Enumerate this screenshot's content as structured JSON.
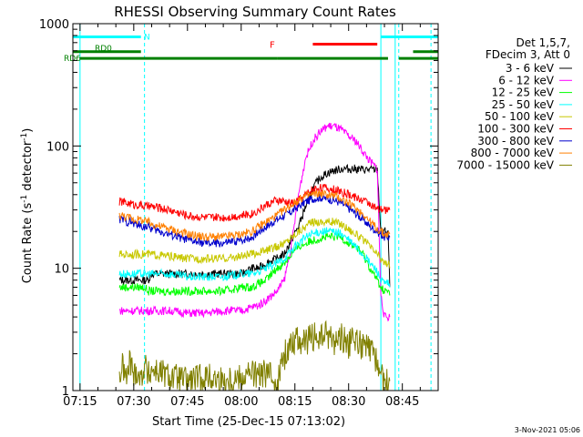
{
  "chart_data": {
    "type": "line",
    "title": "RHESSI Observing Summary Count Rates",
    "xlabel": "Start Time (25-Dec-15 07:13:02)",
    "ylabel_main": "Count Rate (s",
    "ylabel_sup1": "-1",
    "ylabel_mid": " detector",
    "ylabel_sup2": "-1",
    "ylabel_end": ")",
    "yscale": "log",
    "xlim_minutes": [
      -2,
      100
    ],
    "ylim": [
      1,
      1000
    ],
    "xtick_labels": [
      "07:15",
      "07:30",
      "07:45",
      "08:00",
      "08:15",
      "08:30",
      "08:45"
    ],
    "xtick_minutes": [
      0,
      15,
      30,
      45,
      60,
      75,
      90
    ],
    "ytick_labels": [
      "1",
      "10",
      "100",
      "1000"
    ],
    "ytick_values": [
      1,
      10,
      100,
      1000
    ],
    "footer": "3-Nov-2021 05:06",
    "legend_header": [
      "Det 1,5,7,",
      "FDecim 3, Att 0"
    ],
    "flag_labels": {
      "N": "N",
      "RD0": "RD0",
      "RD6": "RD6",
      "F": "F"
    },
    "flags": [
      {
        "name": "N",
        "color": "#00ffff",
        "y": 780,
        "segments": [
          [
            -2,
            17
          ],
          [
            84,
            100
          ]
        ]
      },
      {
        "name": "RD0",
        "color": "#008000",
        "y": 590,
        "segments": [
          [
            -2,
            17
          ],
          [
            93,
            100
          ]
        ]
      },
      {
        "name": "RD6",
        "color": "#008000",
        "y": 520,
        "segments": [
          [
            0,
            20
          ],
          [
            20,
            55
          ],
          [
            55,
            86
          ],
          [
            89,
            100
          ]
        ]
      },
      {
        "name": "F",
        "color": "#ff0000",
        "y": 680,
        "segments": [
          [
            65,
            83
          ]
        ]
      }
    ],
    "vlines_solid_minutes": [
      0,
      84,
      88
    ],
    "vlines_dashed_minutes": [
      18,
      89,
      98
    ],
    "x": [
      11,
      12,
      13,
      14,
      15,
      16,
      17,
      18,
      19,
      20,
      25,
      30,
      35,
      40,
      45,
      48,
      50,
      52,
      55,
      57,
      59,
      61,
      63,
      65,
      67,
      69,
      71,
      73,
      75,
      77,
      79,
      81,
      83,
      84,
      85,
      86,
      86.5
    ],
    "series": [
      {
        "name": "3 - 6 keV",
        "color": "#000000",
        "values": [
          8,
          8,
          8,
          8,
          8,
          8,
          8,
          8,
          8,
          9,
          9,
          9,
          9,
          9,
          9,
          10,
          10,
          11,
          12,
          13,
          17,
          22,
          32,
          45,
          55,
          60,
          63,
          65,
          65,
          65,
          64,
          64,
          64,
          20,
          20,
          20,
          7
        ]
      },
      {
        "name": "6 - 12 keV",
        "color": "#ff00ff",
        "values": [
          4.5,
          4.5,
          4.5,
          4.5,
          4.5,
          4.5,
          4.5,
          4.5,
          4.5,
          4.5,
          4.5,
          4.3,
          4.3,
          4.5,
          4.5,
          4.8,
          5,
          5.5,
          6.5,
          8,
          15,
          40,
          80,
          110,
          130,
          145,
          145,
          135,
          120,
          110,
          90,
          75,
          65,
          6,
          4,
          4,
          4
        ]
      },
      {
        "name": "12 - 25 keV",
        "color": "#00ff00",
        "values": [
          7,
          7,
          7,
          7,
          7,
          7,
          7,
          7,
          6.5,
          6.5,
          6.5,
          6.5,
          6.5,
          6.5,
          7,
          7,
          7.5,
          8,
          10,
          11,
          13,
          15,
          16,
          17,
          17.5,
          18,
          18,
          18,
          16,
          15,
          13,
          10,
          8,
          7,
          6.5,
          6.5,
          6
        ]
      },
      {
        "name": "25 - 50 keV",
        "color": "#00ffff",
        "values": [
          9,
          9,
          9,
          9,
          9,
          9,
          9,
          9,
          9,
          9,
          9,
          8.5,
          8.5,
          8.5,
          9,
          9,
          9.5,
          10,
          11,
          12,
          14,
          16,
          18,
          19,
          20,
          20,
          20,
          19,
          17,
          15,
          13,
          11,
          9.5,
          8,
          7.5,
          7.5,
          7
        ]
      },
      {
        "name": "50 - 100 keV",
        "color": "#c8c800",
        "values": [
          13,
          13,
          13,
          13,
          13,
          13,
          13,
          13,
          13,
          13,
          12.5,
          12,
          12,
          12,
          12.5,
          13,
          13.5,
          14,
          15,
          16,
          18,
          20,
          22,
          24,
          24,
          24,
          24,
          23,
          21,
          19,
          17,
          15,
          13,
          12,
          11,
          11,
          10
        ]
      },
      {
        "name": "100 - 300 keV",
        "color": "#ff0000",
        "values": [
          35,
          35,
          34,
          34,
          33,
          33,
          33,
          32,
          32,
          32,
          30,
          27,
          26,
          26,
          27,
          28,
          30,
          33,
          36,
          35,
          34,
          36,
          40,
          44,
          46,
          45,
          44,
          42,
          40,
          38,
          36,
          34,
          30,
          30,
          30,
          30,
          30
        ]
      },
      {
        "name": "300 - 800 keV",
        "color": "#0000cd",
        "values": [
          25,
          25,
          24,
          24,
          23,
          23,
          22,
          22,
          22,
          21,
          19,
          17,
          16,
          16,
          17,
          18,
          20,
          22,
          25,
          27,
          29,
          32,
          35,
          37,
          38,
          37,
          36,
          34,
          31,
          28,
          25,
          22,
          20,
          19,
          18,
          18,
          18
        ]
      },
      {
        "name": "800 - 7000 keV",
        "color": "#ff8000",
        "values": [
          27,
          27,
          26,
          26,
          25,
          25,
          25,
          24,
          24,
          23,
          21,
          19,
          18,
          18,
          19,
          20,
          22,
          24,
          27,
          30,
          33,
          36,
          39,
          40,
          41,
          40,
          39,
          37,
          34,
          31,
          28,
          24,
          21,
          20,
          19,
          19,
          19
        ]
      },
      {
        "name": "7000 - 15000 keV",
        "color": "#808000",
        "values": [
          1.3,
          1.6,
          1.2,
          1.8,
          1.3,
          1.5,
          1.2,
          1.7,
          1.3,
          1.5,
          1.3,
          1.2,
          1.3,
          1.2,
          1.3,
          1.4,
          1.3,
          1.4,
          1.2,
          1.9,
          2.5,
          2.7,
          2.4,
          2.8,
          2.6,
          2.9,
          2.5,
          2.7,
          2.4,
          2.6,
          2.3,
          2.1,
          1.8,
          1.3,
          1.2,
          1.2,
          1.2
        ]
      }
    ]
  }
}
